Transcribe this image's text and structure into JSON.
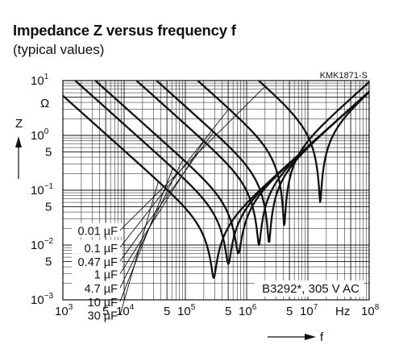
{
  "chart_data": {
    "type": "line",
    "title": "Impedance Z versus frequency f",
    "subtitle": "(typical values)",
    "figure_code": "KMK1871-S",
    "annotation": "B3292*, 305 V AC",
    "xlabel": "f",
    "ylabel": "Z",
    "y_unit": "Ω",
    "x_unit": "Hz",
    "x_scale": "log",
    "y_scale": "log",
    "xlim": [
      1000,
      100000000
    ],
    "ylim": [
      0.001,
      10
    ],
    "grid": true,
    "x_ticks": [
      {
        "base": "10",
        "exp": "3",
        "v": 1000
      },
      {
        "base": "5",
        "exp": "",
        "v": 5000
      },
      {
        "base": "10",
        "exp": "4",
        "v": 10000
      },
      {
        "base": "5",
        "exp": "",
        "v": 50000
      },
      {
        "base": "10",
        "exp": "5",
        "v": 100000
      },
      {
        "base": "5",
        "exp": "",
        "v": 500000
      },
      {
        "base": "10",
        "exp": "6",
        "v": 1000000
      },
      {
        "base": "5",
        "exp": "",
        "v": 5000000
      },
      {
        "base": "10",
        "exp": "7",
        "v": 10000000
      },
      {
        "base": "10",
        "exp": "8",
        "v": 100000000
      }
    ],
    "y_ticks": [
      {
        "base": "10",
        "exp": "1",
        "v": 10
      },
      {
        "base": "10",
        "exp": "0",
        "v": 1
      },
      {
        "base": "5",
        "exp": "",
        "v": 0.5
      },
      {
        "base": "10",
        "exp": "−1",
        "v": 0.1
      },
      {
        "base": "5",
        "exp": "",
        "v": 0.05
      },
      {
        "base": "10",
        "exp": "−2",
        "v": 0.01
      },
      {
        "base": "5",
        "exp": "",
        "v": 0.005
      },
      {
        "base": "10",
        "exp": "−3",
        "v": 0.001
      }
    ],
    "series": [
      {
        "name": "0.01 µF",
        "label_y": 0.0168,
        "C": 1e-08,
        "L": 1e-08,
        "R": 0.06,
        "f_res": 16000000
      },
      {
        "name": "0.1 µF",
        "label_y": 0.0082,
        "C": 1e-07,
        "L": 1.5e-08,
        "R": 0.022,
        "f_res": 4100000
      },
      {
        "name": "0.47 µF",
        "label_y": 0.0046,
        "C": 4.7e-07,
        "L": 1e-08,
        "R": 0.011,
        "f_res": 2300000
      },
      {
        "name": "1 µF",
        "label_y": 0.0027,
        "C": 1e-06,
        "L": 1e-08,
        "R": 0.01,
        "f_res": 1600000
      },
      {
        "name": "4.7 µF",
        "label_y": 0.0015,
        "C": 4.7e-06,
        "L": 1e-08,
        "R": 0.007,
        "f_res": 730000
      },
      {
        "name": "10 µF",
        "label_y": 0.00085,
        "C": 1e-05,
        "L": 1e-08,
        "R": 0.0045,
        "f_res": 500000
      },
      {
        "name": "30 µF",
        "label_y": 0.00048,
        "C": 3e-05,
        "L": 1e-08,
        "R": 0.0025,
        "f_res": 290000
      }
    ]
  }
}
